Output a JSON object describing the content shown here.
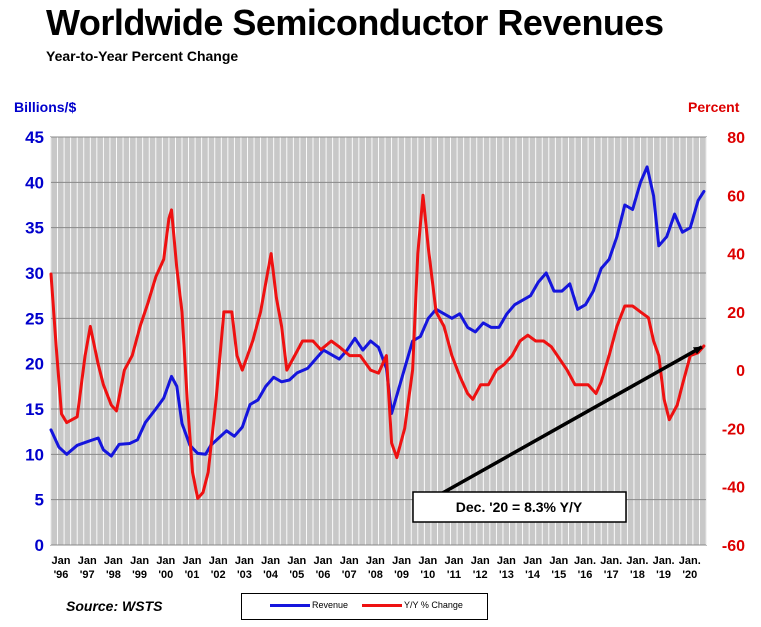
{
  "title": "Worldwide Semiconductor Revenues",
  "subtitle": "Year-to-Year Percent Change",
  "source": "Source: WSTS",
  "colors": {
    "revenue": "#1515dd",
    "yoy": "#ee1111",
    "left_axis": "#0000cc",
    "right_axis": "#dd0000",
    "grid": "#888888",
    "plot_bg": "#c8c8c8"
  },
  "chart_data": {
    "type": "line",
    "ylabel_left": "Billions/$",
    "ylabel_right": "Percent",
    "ylim_left": [
      0,
      45
    ],
    "ylim_right": [
      -60,
      80
    ],
    "yticks_left": [
      "0",
      "5",
      "10",
      "15",
      "20",
      "25",
      "30",
      "35",
      "40",
      "45"
    ],
    "yticks_right": [
      "-60",
      "-40",
      "-20",
      "0",
      "20",
      "40",
      "60",
      "80"
    ],
    "xlim": [
      1996.0,
      2021.0
    ],
    "x_tick_labels": [
      {
        "month": "Jan",
        "year": "'96"
      },
      {
        "month": "Jan",
        "year": "'97"
      },
      {
        "month": "Jan",
        "year": "'98"
      },
      {
        "month": "Jan",
        "year": "'99"
      },
      {
        "month": "Jan",
        "year": "'00"
      },
      {
        "month": "Jan",
        "year": "'01"
      },
      {
        "month": "Jan",
        "year": "'02"
      },
      {
        "month": "Jan",
        "year": "'03"
      },
      {
        "month": "Jan",
        "year": "'04"
      },
      {
        "month": "Jan",
        "year": "'05"
      },
      {
        "month": "Jan",
        "year": "'06"
      },
      {
        "month": "Jan",
        "year": "'07"
      },
      {
        "month": "Jan",
        "year": "'08"
      },
      {
        "month": "Jan",
        "year": "'09"
      },
      {
        "month": "Jan",
        "year": "'10"
      },
      {
        "month": "Jan",
        "year": "'11"
      },
      {
        "month": "Jan",
        "year": "'12"
      },
      {
        "month": "Jan",
        "year": "'13"
      },
      {
        "month": "Jan",
        "year": "'14"
      },
      {
        "month": "Jan",
        "year": "'15"
      },
      {
        "month": "Jan.",
        "year": "'16"
      },
      {
        "month": "Jan.",
        "year": "'17"
      },
      {
        "month": "Jan.",
        "year": "'18"
      },
      {
        "month": "Jan.",
        "year": "'19"
      },
      {
        "month": "Jan.",
        "year": "'20"
      }
    ],
    "grid": true,
    "legend_position": "bottom",
    "series": [
      {
        "name": "Revenue",
        "axis": "left",
        "x": [
          1996.0,
          1996.3,
          1996.6,
          1997.0,
          1997.4,
          1997.8,
          1998.0,
          1998.3,
          1998.6,
          1999.0,
          1999.3,
          1999.6,
          2000.0,
          2000.3,
          2000.6,
          2000.8,
          2001.0,
          2001.3,
          2001.6,
          2001.9,
          2002.1,
          2002.4,
          2002.7,
          2003.0,
          2003.3,
          2003.6,
          2003.9,
          2004.2,
          2004.5,
          2004.8,
          2005.1,
          2005.4,
          2005.8,
          2006.1,
          2006.4,
          2006.7,
          2007.0,
          2007.3,
          2007.6,
          2007.9,
          2008.2,
          2008.5,
          2008.8,
          2009.0,
          2009.2,
          2009.5,
          2009.8,
          2010.1,
          2010.4,
          2010.7,
          2011.0,
          2011.3,
          2011.6,
          2011.9,
          2012.2,
          2012.5,
          2012.8,
          2013.1,
          2013.4,
          2013.7,
          2014.0,
          2014.3,
          2014.6,
          2014.9,
          2015.2,
          2015.5,
          2015.8,
          2016.1,
          2016.4,
          2016.7,
          2017.0,
          2017.3,
          2017.6,
          2017.9,
          2018.2,
          2018.5,
          2018.75,
          2019.0,
          2019.2,
          2019.5,
          2019.8,
          2020.1,
          2020.4,
          2020.7,
          2020.92
        ],
        "y": [
          12.7,
          10.8,
          10.0,
          11.0,
          11.4,
          11.8,
          10.5,
          9.8,
          11.1,
          11.2,
          11.6,
          13.5,
          15.0,
          16.2,
          18.6,
          17.5,
          13.4,
          11.0,
          10.1,
          10.0,
          11.0,
          11.8,
          12.6,
          12.0,
          13.0,
          15.5,
          16.0,
          17.5,
          18.5,
          18.0,
          18.2,
          19.0,
          19.5,
          20.5,
          21.5,
          21.0,
          20.5,
          21.5,
          22.8,
          21.5,
          22.5,
          21.8,
          19.5,
          14.5,
          16.5,
          19.5,
          22.5,
          23.0,
          25.0,
          26.0,
          25.5,
          25.0,
          25.5,
          24.0,
          23.5,
          24.5,
          24.0,
          24.0,
          25.5,
          26.5,
          27.0,
          27.5,
          29.0,
          30.0,
          28.0,
          28.0,
          28.8,
          26.0,
          26.5,
          28.0,
          30.5,
          31.5,
          34.0,
          37.5,
          37.0,
          40.0,
          41.7,
          38.5,
          33.0,
          34.0,
          36.5,
          34.5,
          35.0,
          38.0,
          39.0
        ]
      },
      {
        "name": "Y/Y % Change",
        "axis": "right",
        "x": [
          1996.0,
          1996.2,
          1996.4,
          1996.6,
          1997.0,
          1997.3,
          1997.5,
          1997.8,
          1998.0,
          1998.3,
          1998.5,
          1998.8,
          1999.1,
          1999.4,
          1999.7,
          2000.0,
          2000.3,
          2000.5,
          2000.6,
          2000.8,
          2001.0,
          2001.2,
          2001.4,
          2001.6,
          2001.8,
          2002.0,
          2002.3,
          2002.6,
          2002.9,
          2003.1,
          2003.3,
          2003.5,
          2003.7,
          2004.0,
          2004.2,
          2004.4,
          2004.6,
          2004.8,
          2005.0,
          2005.3,
          2005.6,
          2006.0,
          2006.3,
          2006.7,
          2007.0,
          2007.4,
          2007.8,
          2008.2,
          2008.5,
          2008.8,
          2009.0,
          2009.2,
          2009.5,
          2009.8,
          2010.0,
          2010.2,
          2010.4,
          2010.7,
          2011.0,
          2011.3,
          2011.6,
          2011.9,
          2012.1,
          2012.4,
          2012.7,
          2013.0,
          2013.3,
          2013.6,
          2013.9,
          2014.2,
          2014.5,
          2014.8,
          2015.1,
          2015.4,
          2015.7,
          2016.0,
          2016.3,
          2016.5,
          2016.8,
          2017.0,
          2017.3,
          2017.6,
          2017.9,
          2018.2,
          2018.5,
          2018.8,
          2019.0,
          2019.2,
          2019.4,
          2019.6,
          2019.9,
          2020.1,
          2020.4,
          2020.7,
          2020.92
        ],
        "y": [
          33,
          8,
          -15,
          -18,
          -16,
          5,
          15,
          2,
          -5,
          -12,
          -14,
          0,
          5,
          15,
          23,
          32,
          38,
          52,
          55,
          35,
          20,
          -10,
          -35,
          -44,
          -42,
          -35,
          -10,
          20,
          20,
          5,
          0,
          5,
          10,
          20,
          30,
          40,
          25,
          15,
          0,
          5,
          10,
          10,
          7,
          10,
          8,
          5,
          5,
          0,
          -1,
          5,
          -25,
          -30,
          -20,
          0,
          40,
          60,
          42,
          20,
          15,
          5,
          -2,
          -8,
          -10,
          -5,
          -5,
          0,
          2,
          5,
          10,
          12,
          10,
          10,
          8,
          4,
          0,
          -5,
          -5,
          -5,
          -8,
          -4,
          5,
          15,
          22,
          22,
          20,
          18,
          10,
          5,
          -10,
          -17,
          -12,
          -5,
          5,
          6,
          8.3
        ]
      }
    ],
    "annotation": {
      "text": "Dec. '20 = 8.3% Y/Y",
      "from": {
        "x": 2010.8,
        "y_left": 5.5
      },
      "to": {
        "x": 2020.92,
        "y_right": 8.3
      }
    }
  }
}
